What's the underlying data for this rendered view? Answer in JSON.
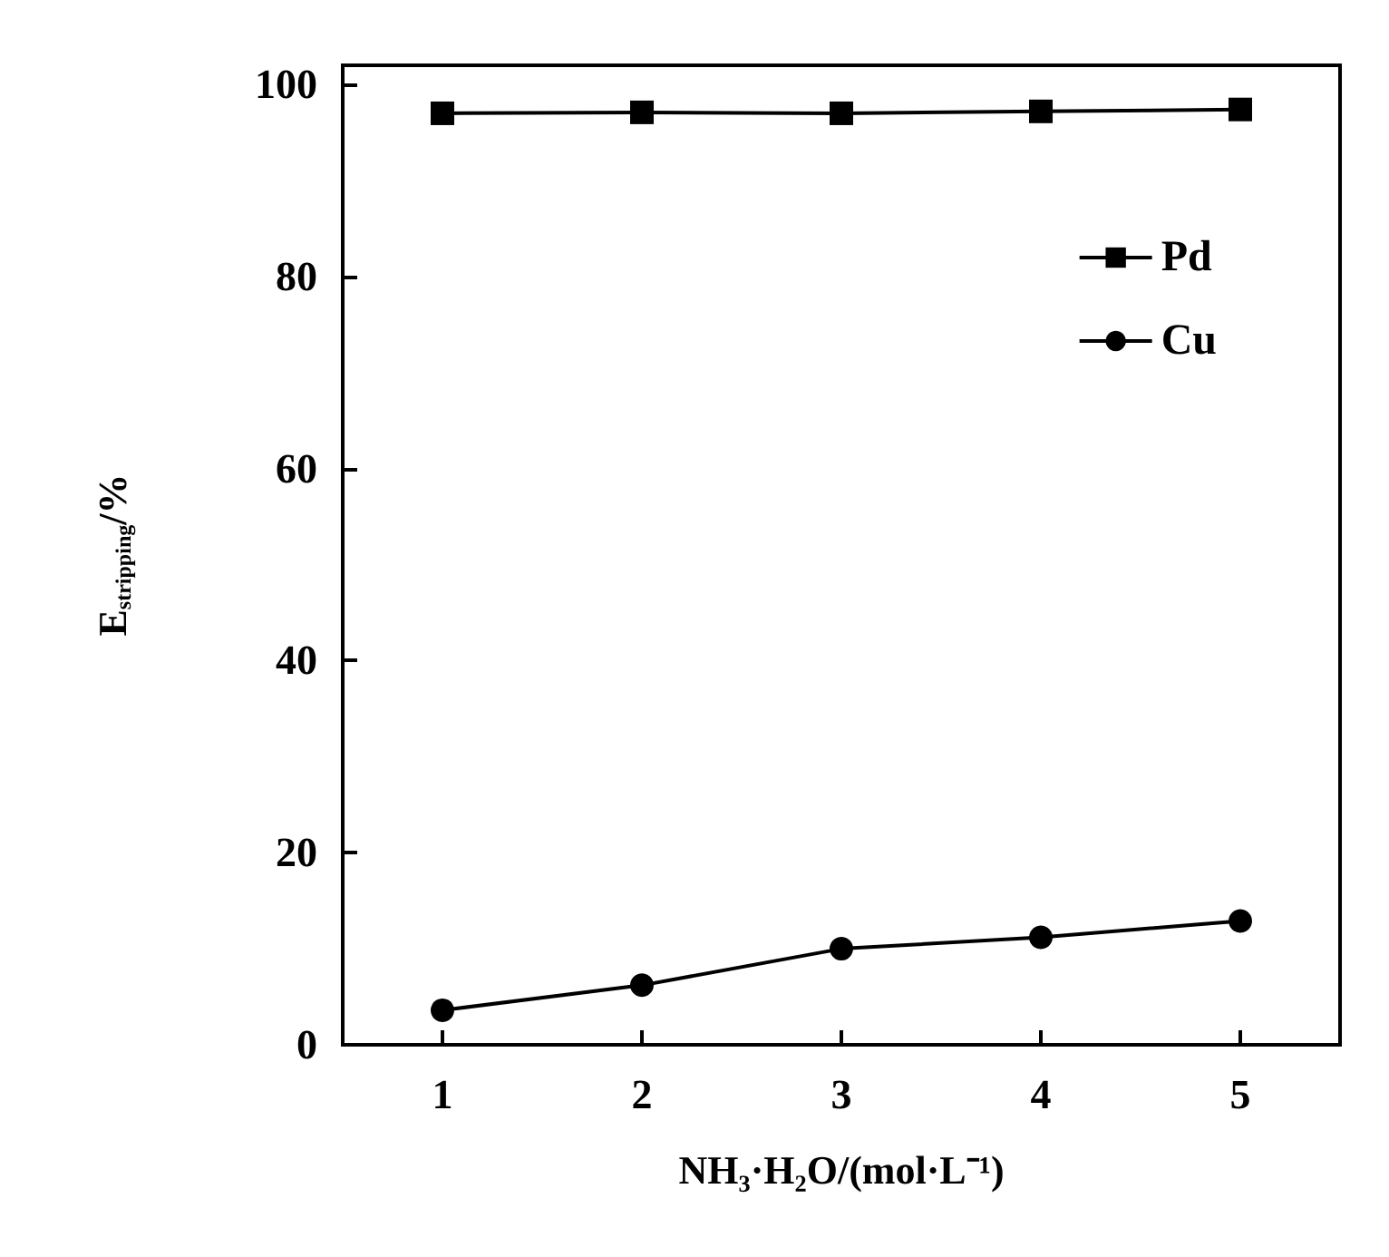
{
  "chart_data": {
    "type": "line",
    "xlabel": "NH₃·H₂O/(mol·L⁻¹)",
    "ylabel": "E$_{stripping}$/%",
    "x": [
      1,
      2,
      3,
      4,
      5
    ],
    "series": [
      {
        "name": "Pd",
        "color": "#000000",
        "marker": "square",
        "values": [
          97.0,
          97.1,
          97.0,
          97.2,
          97.4
        ]
      },
      {
        "name": "Cu",
        "color": "#000000",
        "marker": "circle",
        "values": [
          3.6,
          6.2,
          10.0,
          11.2,
          12.9
        ]
      }
    ],
    "xlim": [
      0.5,
      5.5
    ],
    "xticks": [
      1,
      2,
      3,
      4,
      5
    ],
    "ylim": [
      0,
      102
    ],
    "yticks": [
      0,
      20,
      40,
      60,
      80,
      100
    ],
    "grid": false,
    "legend": "top right",
    "line_style": "solid"
  }
}
